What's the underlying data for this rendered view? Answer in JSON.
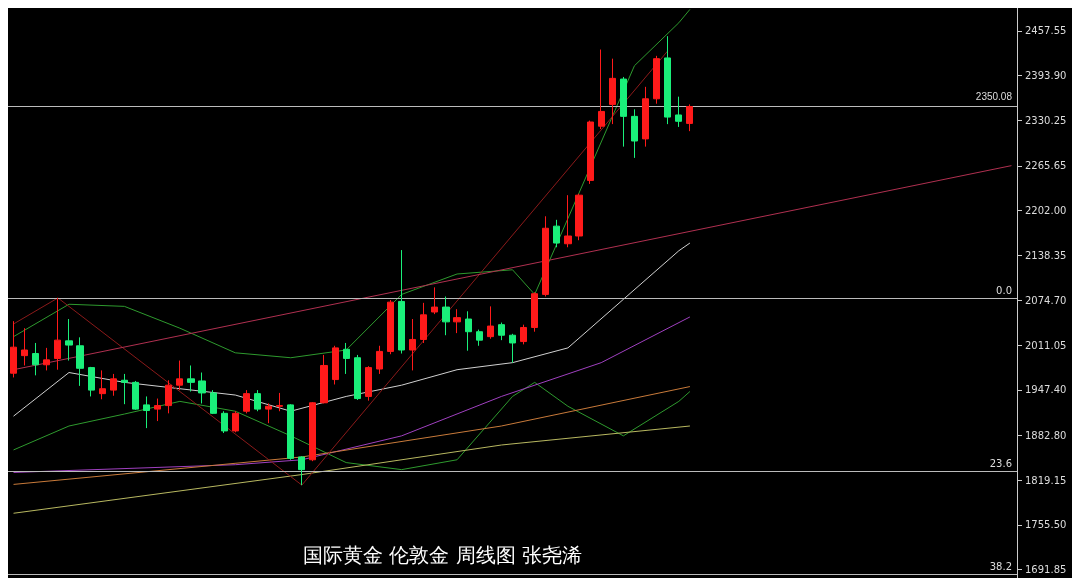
{
  "chart_data": {
    "type": "candlestick",
    "title": "国际黄金 伦敦金 周线图 张尧浠",
    "categories": [
      null,
      null,
      null,
      null,
      null,
      null,
      null,
      null,
      null,
      null,
      null,
      null,
      null,
      null,
      null,
      null,
      null,
      null,
      null,
      null,
      null,
      null,
      null,
      null,
      null,
      null,
      null,
      null,
      null,
      null,
      null,
      null,
      null,
      null,
      null,
      null,
      null,
      null,
      null,
      null,
      null,
      null,
      null,
      null,
      null,
      null,
      null,
      null,
      null,
      null,
      null,
      null,
      null,
      null,
      null,
      null,
      null,
      null,
      null,
      null,
      null,
      null,
      null,
      null,
      null,
      null,
      null,
      null,
      null,
      null,
      null,
      null,
      null,
      null,
      null,
      null,
      null,
      null,
      null,
      null,
      null,
      null,
      null,
      null,
      null,
      null,
      null,
      null,
      null,
      null,
      null
    ],
    "series": [
      {
        "colors": [
          "#ff1a1a",
          "#ff1a1a",
          "#1aef7a",
          "#ff1a1a",
          "#ff1a1a",
          "#1aef7a",
          "#1aef7a",
          "#1aef7a",
          "#ff1a1a",
          "#ff1a1a",
          "#1aef7a",
          "#1aef7a",
          "#1aef7a",
          "#ff1a1a",
          "#ff1a1a",
          "#ff1a1a",
          "#1aef7a",
          "#1aef7a",
          "#1aef7a",
          "#1aef7a",
          "#ff1a1a",
          "#ff1a1a",
          "#1aef7a",
          "#ff1a1a",
          "#ff1a1a",
          "#1aef7a",
          "#1aef7a",
          "#ff1a1a",
          "#ff1a1a",
          "#ff1a1a",
          "#1aef7a",
          "#1aef7a",
          "#ff1a1a",
          "#ff1a1a",
          "#ff1a1a",
          "#1aef7a",
          "#ff1a1a",
          "#ff1a1a",
          "#ff1a1a",
          "#1aef7a",
          "#ff1a1a",
          "#1aef7a",
          "#1aef7a",
          "#ff1a1a",
          "#1aef7a",
          "#1aef7a",
          "#ff1a1a",
          "#ff1a1a",
          "#ff1a1a",
          "#1aef7a",
          "#ff1a1a",
          "#ff1a1a",
          "#ff1a1a",
          "#ff1a1a",
          "#ff1a1a",
          "#1aef7a",
          "#1aef7a",
          "#ff1a1a",
          "#ff1a1a",
          "#1aef7a",
          "#1aef7a",
          "#ff1a1a",
          null,
          null,
          null,
          null,
          null,
          null,
          null,
          null,
          null,
          null,
          null,
          null,
          null,
          null,
          null,
          null,
          null,
          null,
          null,
          null,
          null,
          null,
          null,
          null,
          null,
          null,
          null,
          null,
          null
        ],
        "ohlc": [
          [
            1971,
            2045,
            1965,
            2008
          ],
          [
            1996,
            2035,
            1982,
            2004
          ],
          [
            1999,
            2014,
            1968,
            1983
          ],
          [
            1983,
            2007,
            1975,
            1990
          ],
          [
            1992,
            2078,
            1976,
            2018
          ],
          [
            2017,
            2048,
            1989,
            2011
          ],
          [
            2010,
            2022,
            1953,
            1978
          ],
          [
            1979,
            1980,
            1938,
            1947
          ],
          [
            1942,
            1975,
            1934,
            1949
          ],
          [
            1947,
            1970,
            1939,
            1963
          ],
          [
            1961,
            1970,
            1927,
            1958
          ],
          [
            1958,
            1960,
            1919,
            1920
          ],
          [
            1926,
            1938,
            1893,
            1918
          ],
          [
            1920,
            1935,
            1903,
            1925
          ],
          [
            1925,
            1961,
            1914,
            1954
          ],
          [
            1954,
            1989,
            1947,
            1963
          ],
          [
            1963,
            1982,
            1945,
            1958
          ],
          [
            1960,
            1972,
            1928,
            1943
          ],
          [
            1943,
            1947,
            1913,
            1914
          ],
          [
            1914,
            1917,
            1886,
            1889
          ],
          [
            1889,
            1917,
            1887,
            1914
          ],
          [
            1917,
            1947,
            1914,
            1942
          ],
          [
            1942,
            1947,
            1917,
            1920
          ],
          [
            1920,
            1928,
            1900,
            1924
          ],
          [
            1924,
            1943,
            1917,
            1925
          ],
          [
            1926,
            1927,
            1848,
            1850
          ],
          [
            1852,
            1853,
            1812,
            1834
          ],
          [
            1848,
            1930,
            1846,
            1929
          ],
          [
            1929,
            1997,
            1928,
            1982
          ],
          [
            1962,
            2010,
            1955,
            2007
          ],
          [
            2005,
            2014,
            1970,
            1992
          ],
          [
            1993,
            1997,
            1933,
            1935
          ],
          [
            1938,
            1981,
            1932,
            1979
          ],
          [
            1977,
            2010,
            1970,
            2002
          ],
          [
            2002,
            2075,
            1998,
            2072
          ],
          [
            2073,
            2146,
            1999,
            2004
          ],
          [
            2004,
            2048,
            1975,
            2019
          ],
          [
            2019,
            2071,
            2014,
            2054
          ],
          [
            2058,
            2093,
            2055,
            2065
          ],
          [
            2065,
            2080,
            2025,
            2044
          ],
          [
            2044,
            2062,
            2028,
            2050
          ],
          [
            2048,
            2059,
            2003,
            2030
          ],
          [
            2030,
            2033,
            2010,
            2018
          ],
          [
            2023,
            2066,
            2020,
            2038
          ],
          [
            2040,
            2043,
            2018,
            2025
          ],
          [
            2025,
            2027,
            1986,
            2014
          ],
          [
            2016,
            2040,
            2012,
            2036
          ],
          [
            2036,
            2086,
            2030,
            2084
          ],
          [
            2083,
            2194,
            2080,
            2177
          ],
          [
            2180,
            2189,
            2150,
            2156
          ],
          [
            2155,
            2224,
            2150,
            2166
          ],
          [
            2166,
            2226,
            2160,
            2224
          ],
          [
            2245,
            2330,
            2240,
            2328
          ],
          [
            2322,
            2431,
            2318,
            2343
          ],
          [
            2353,
            2418,
            2325,
            2390
          ],
          [
            2389,
            2392,
            2293,
            2336
          ],
          [
            2336,
            2346,
            2277,
            2301
          ],
          [
            2304,
            2378,
            2293,
            2361
          ],
          [
            2361,
            2422,
            2354,
            2418
          ],
          [
            2419,
            2450,
            2325,
            2335
          ],
          [
            2338,
            2364,
            2321,
            2329
          ],
          [
            2326,
            2353,
            2315,
            2350
          ],
          null,
          null,
          null,
          null,
          null,
          null,
          null,
          null,
          null,
          null,
          null,
          null,
          null,
          null,
          null,
          null,
          null,
          null,
          null,
          null,
          null,
          null,
          null,
          null,
          null,
          null,
          null,
          null,
          null
        ]
      },
      {
        "type": "line",
        "color": "#2e9a2e",
        "values": [
          2023,
          null,
          null,
          null,
          null,
          2069,
          null,
          null,
          null,
          null,
          2066,
          null,
          null,
          null,
          null,
          2035,
          null,
          null,
          null,
          null,
          2000,
          null,
          null,
          null,
          null,
          1993,
          null,
          null,
          null,
          null,
          2004,
          null,
          null,
          null,
          null,
          2083,
          null,
          null,
          null,
          null,
          2112,
          null,
          null,
          null,
          null,
          2118,
          null,
          2083,
          null,
          null,
          2191,
          null,
          null,
          null,
          null,
          null,
          2408,
          null,
          null,
          null,
          2469,
          2488,
          null,
          null,
          null,
          null,
          null,
          null,
          null,
          null,
          null,
          null,
          null,
          null,
          null,
          null,
          null,
          null,
          null,
          null,
          null,
          null,
          null,
          null,
          null,
          null,
          null,
          null,
          null,
          null,
          null
        ]
      },
      {
        "type": "line",
        "color": "#2e9a2e",
        "values": [
          1862,
          null,
          null,
          null,
          null,
          1896,
          null,
          null,
          null,
          null,
          1913,
          null,
          null,
          null,
          null,
          1931,
          null,
          null,
          null,
          null,
          1917,
          null,
          null,
          null,
          null,
          1882,
          null,
          null,
          null,
          null,
          1844,
          null,
          null,
          null,
          null,
          1834,
          null,
          null,
          null,
          null,
          1848,
          null,
          null,
          null,
          null,
          1938,
          null,
          1958,
          null,
          null,
          1924,
          null,
          null,
          null,
          null,
          1882,
          null,
          null,
          null,
          null,
          1931,
          1945,
          null,
          null,
          null,
          null,
          null,
          null,
          null,
          null,
          null,
          null,
          null,
          null,
          null,
          null,
          null,
          null,
          null,
          null,
          null,
          null,
          null,
          null,
          null,
          null,
          null,
          null,
          null,
          null,
          null
        ]
      },
      {
        "type": "line",
        "color": "#d0d0d0",
        "values": [
          1910,
          null,
          null,
          null,
          null,
          1972,
          null,
          null,
          null,
          null,
          1958,
          null,
          null,
          null,
          null,
          1949,
          null,
          null,
          null,
          null,
          1940,
          null,
          null,
          null,
          null,
          1917,
          null,
          null,
          null,
          null,
          1938,
          null,
          null,
          null,
          null,
          1954,
          null,
          null,
          null,
          null,
          1976,
          null,
          null,
          null,
          null,
          1986,
          null,
          null,
          null,
          null,
          2007,
          null,
          null,
          null,
          null,
          2076,
          null,
          null,
          null,
          null,
          2145,
          2156,
          null,
          null,
          null,
          null,
          null,
          null,
          null,
          null,
          null,
          null,
          null,
          null,
          null,
          null,
          null,
          null,
          null,
          null,
          null,
          null,
          null,
          null,
          null,
          null,
          null,
          null,
          null,
          null,
          null
        ]
      },
      {
        "type": "line",
        "color": "#a040c0",
        "values": [
          1830,
          null,
          null,
          null,
          null,
          null,
          null,
          null,
          null,
          null,
          null,
          null,
          null,
          null,
          null,
          null,
          null,
          null,
          null,
          null,
          1841,
          null,
          null,
          null,
          null,
          null,
          1848,
          null,
          null,
          null,
          null,
          null,
          null,
          null,
          null,
          1882,
          null,
          null,
          null,
          null,
          null,
          null,
          null,
          null,
          1938,
          null,
          null,
          null,
          null,
          null,
          null,
          null,
          null,
          1986,
          null,
          null,
          null,
          null,
          null,
          null,
          null,
          2051,
          null,
          null,
          null,
          null,
          null,
          null,
          null,
          null,
          null,
          null,
          null,
          null,
          null,
          null,
          null,
          null,
          null,
          null,
          null,
          null,
          null,
          null,
          null,
          null,
          null,
          null,
          null,
          null,
          null
        ]
      },
      {
        "type": "line",
        "color": "#c87a3a",
        "values": [
          1813,
          null,
          null,
          null,
          null,
          null,
          null,
          null,
          null,
          null,
          null,
          null,
          null,
          null,
          null,
          null,
          null,
          null,
          null,
          null,
          null,
          null,
          null,
          null,
          null,
          null,
          1852,
          null,
          null,
          null,
          null,
          null,
          null,
          null,
          null,
          null,
          null,
          null,
          null,
          null,
          null,
          null,
          null,
          null,
          1896,
          null,
          null,
          null,
          null,
          null,
          null,
          null,
          null,
          null,
          null,
          null,
          null,
          null,
          null,
          null,
          null,
          1952,
          null,
          null,
          null,
          null,
          null,
          null,
          null,
          null,
          null,
          null,
          null,
          null,
          null,
          null,
          null,
          null,
          null,
          null,
          null,
          null,
          null,
          null,
          null,
          null,
          null,
          null,
          null,
          null,
          null
        ]
      },
      {
        "type": "line",
        "color": "#b8b860",
        "values": [
          1772,
          null,
          null,
          null,
          null,
          null,
          null,
          null,
          null,
          null,
          null,
          null,
          null,
          null,
          null,
          null,
          null,
          null,
          null,
          null,
          null,
          null,
          null,
          null,
          null,
          null,
          1827,
          null,
          null,
          null,
          null,
          null,
          null,
          null,
          null,
          null,
          null,
          null,
          null,
          null,
          null,
          null,
          null,
          null,
          1869,
          null,
          null,
          null,
          null,
          null,
          null,
          null,
          null,
          null,
          null,
          null,
          null,
          null,
          null,
          null,
          null,
          1896,
          null,
          null,
          null,
          null,
          null,
          null,
          null,
          null,
          null,
          null,
          null,
          null,
          null,
          null,
          null,
          null,
          null,
          null,
          null,
          null,
          null,
          null,
          null,
          null,
          null,
          null,
          null,
          null,
          null
        ]
      },
      {
        "type": "line",
        "color": "#8b1a1a",
        "values": [
          2041,
          null,
          null,
          null,
          2078,
          null,
          null,
          null,
          null,
          null,
          null,
          null,
          null,
          null,
          null,
          null,
          null,
          null,
          null,
          null,
          null,
          null,
          null,
          null,
          null,
          null,
          1812,
          null,
          null,
          null,
          null,
          null,
          null,
          null,
          null,
          null,
          null,
          null,
          null,
          null,
          null,
          null,
          null,
          null,
          null,
          null,
          null,
          null,
          null,
          null,
          null,
          null,
          null,
          null,
          null,
          null,
          null,
          null,
          null,
          2429,
          null,
          null,
          null,
          null,
          null,
          null,
          null,
          null,
          null,
          null,
          null,
          null,
          null,
          null,
          null,
          null,
          null,
          null,
          null,
          null,
          null,
          null,
          null,
          null,
          null,
          null,
          null,
          null,
          null,
          null,
          null
        ]
      },
      {
        "type": "line",
        "color": "#b03050",
        "values": [
          1976,
          null,
          null,
          null,
          null,
          null,
          null,
          null,
          null,
          null,
          null,
          null,
          null,
          null,
          null,
          null,
          null,
          null,
          null,
          null,
          null,
          null,
          null,
          null,
          null,
          null,
          null,
          null,
          null,
          null,
          null,
          null,
          null,
          null,
          null,
          null,
          null,
          null,
          null,
          null,
          null,
          null,
          null,
          null,
          null,
          null,
          null,
          null,
          null,
          null,
          null,
          null,
          null,
          null,
          null,
          null,
          null,
          null,
          null,
          null,
          null,
          null,
          null,
          null,
          null,
          null,
          null,
          null,
          null,
          null,
          null,
          null,
          null,
          null,
          null,
          null,
          null,
          null,
          null,
          null,
          null,
          null,
          null,
          null,
          null,
          null,
          null,
          null,
          null,
          null,
          2266
        ]
      }
    ],
    "ylim": [
      1680,
      2490
    ],
    "yticks": [
      {
        "value": 1691.85,
        "label": "1691.85"
      },
      {
        "value": 1755.5,
        "label": "1755.50"
      },
      {
        "value": 1819.15,
        "label": "1819.15"
      },
      {
        "value": 1882.8,
        "label": "1882.80"
      },
      {
        "value": 1947.4,
        "label": "1947.40"
      },
      {
        "value": 2011.05,
        "label": "2011.05"
      },
      {
        "value": 2074.7,
        "label": "2074.70"
      },
      {
        "value": 2138.35,
        "label": "2138.35"
      },
      {
        "value": 2202,
        "label": "2202.00"
      },
      {
        "value": 2265.65,
        "label": "2265.65"
      },
      {
        "value": 2330.25,
        "label": "2330.25"
      },
      {
        "value": 2393.9,
        "label": "2393.90"
      },
      {
        "value": 2457.55,
        "label": "2457.55"
      }
    ],
    "ref_lines": [
      {
        "axis": "y",
        "value": 2350.08,
        "label": "2350.08",
        "color": "#bbbbbb"
      },
      {
        "axis": "y",
        "value": 2077,
        "color": "#bbbbbb"
      },
      {
        "axis": "y",
        "value": 1831,
        "color": "#bbbbbb"
      },
      {
        "axis": "y",
        "value": 1685,
        "color": "#bbbbbb"
      }
    ],
    "annotations": [
      {
        "text": "0.0",
        "y": 2077
      },
      {
        "text": "23.6",
        "y": 1831
      },
      {
        "text": "38.2",
        "y": 1685
      }
    ],
    "grid": false,
    "tick_labels": "y",
    "marker": "none",
    "line_style": "solid"
  }
}
